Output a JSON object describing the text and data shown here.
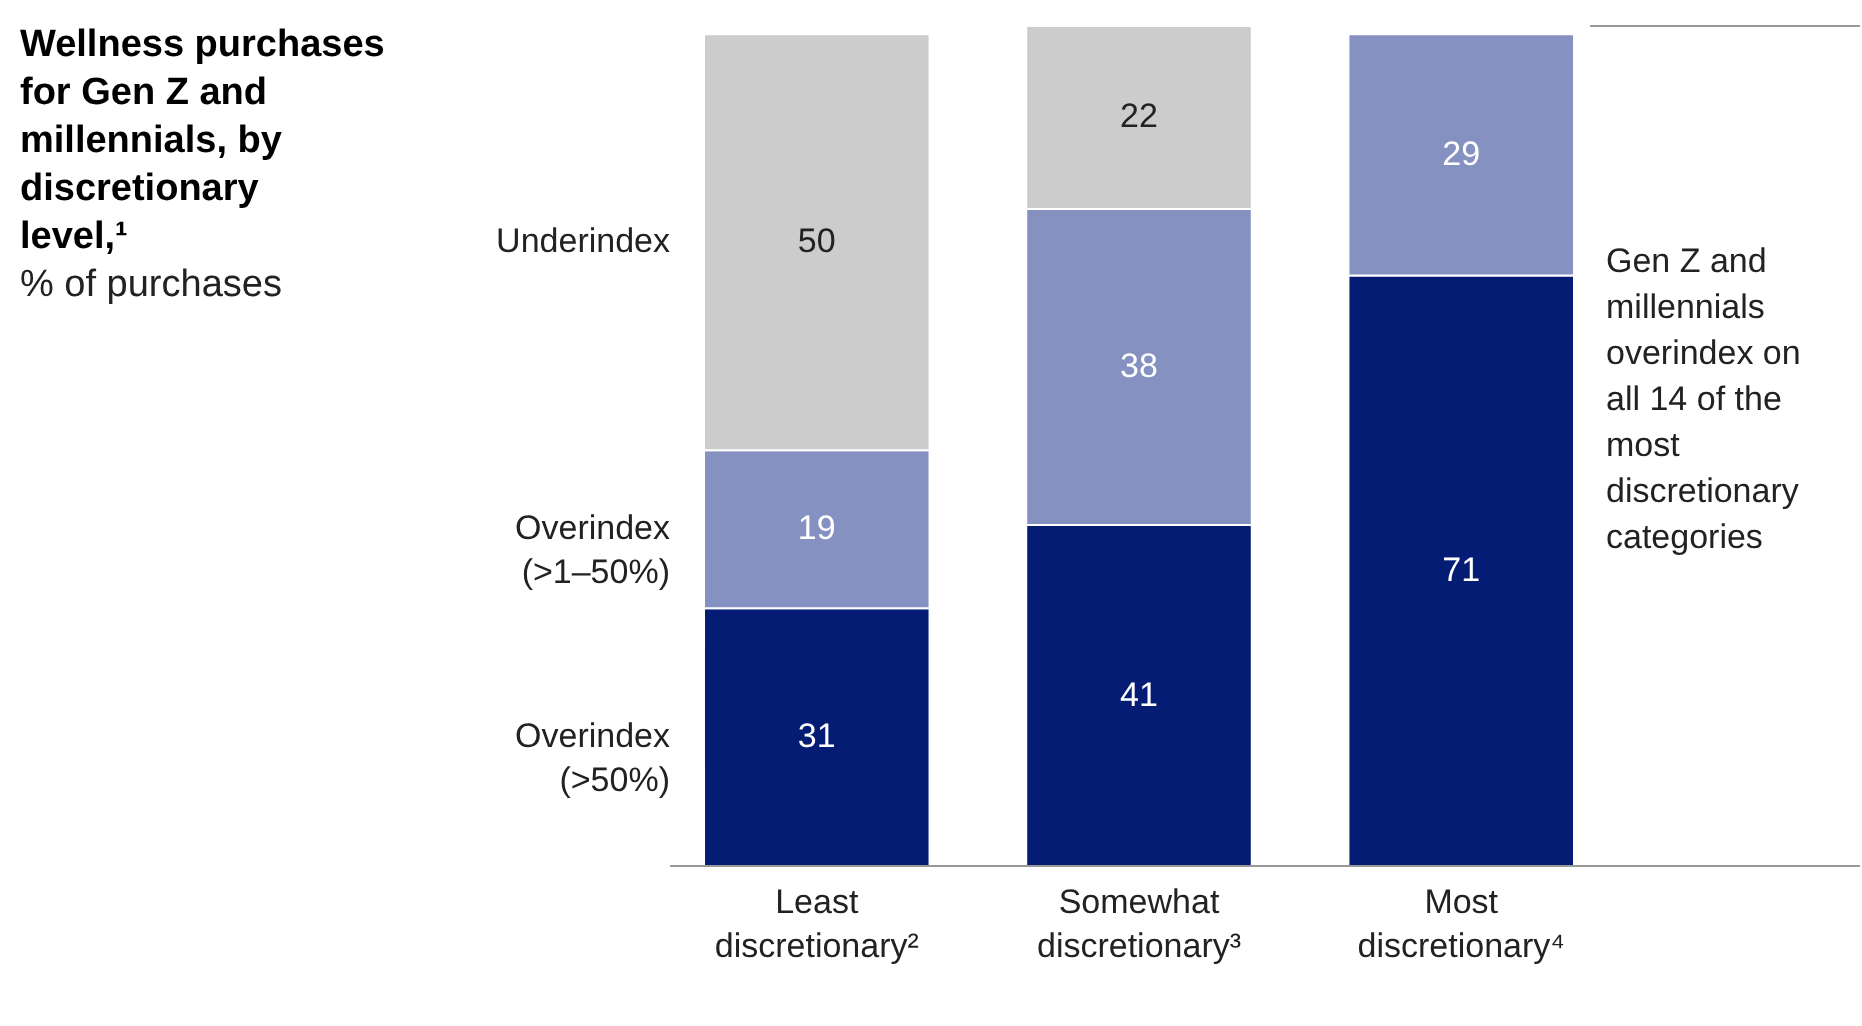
{
  "chart_data": {
    "type": "bar",
    "stacked": true,
    "data_labels": true,
    "legend": "left",
    "title": "Wellness purchases for Gen Z and millennials, by discretionary level,¹",
    "subtitle": "% of purchases",
    "categories": [
      "Least discretionary²",
      "Somewhat discretionary³",
      "Most discretionary⁴"
    ],
    "series": [
      {
        "name": "Overindex (>50%)",
        "color": "#051c75",
        "values": [
          31,
          41,
          71
        ]
      },
      {
        "name": "Overindex (>1–50%)",
        "color": "#8591c0",
        "values": [
          19,
          38,
          29
        ]
      },
      {
        "name": "Underindex",
        "color": "#cccccc",
        "values": [
          50,
          22,
          null
        ]
      }
    ],
    "annotations": [
      "Gen Z and millennials overindex on all 14 of the most discretionary categories"
    ]
  }
}
